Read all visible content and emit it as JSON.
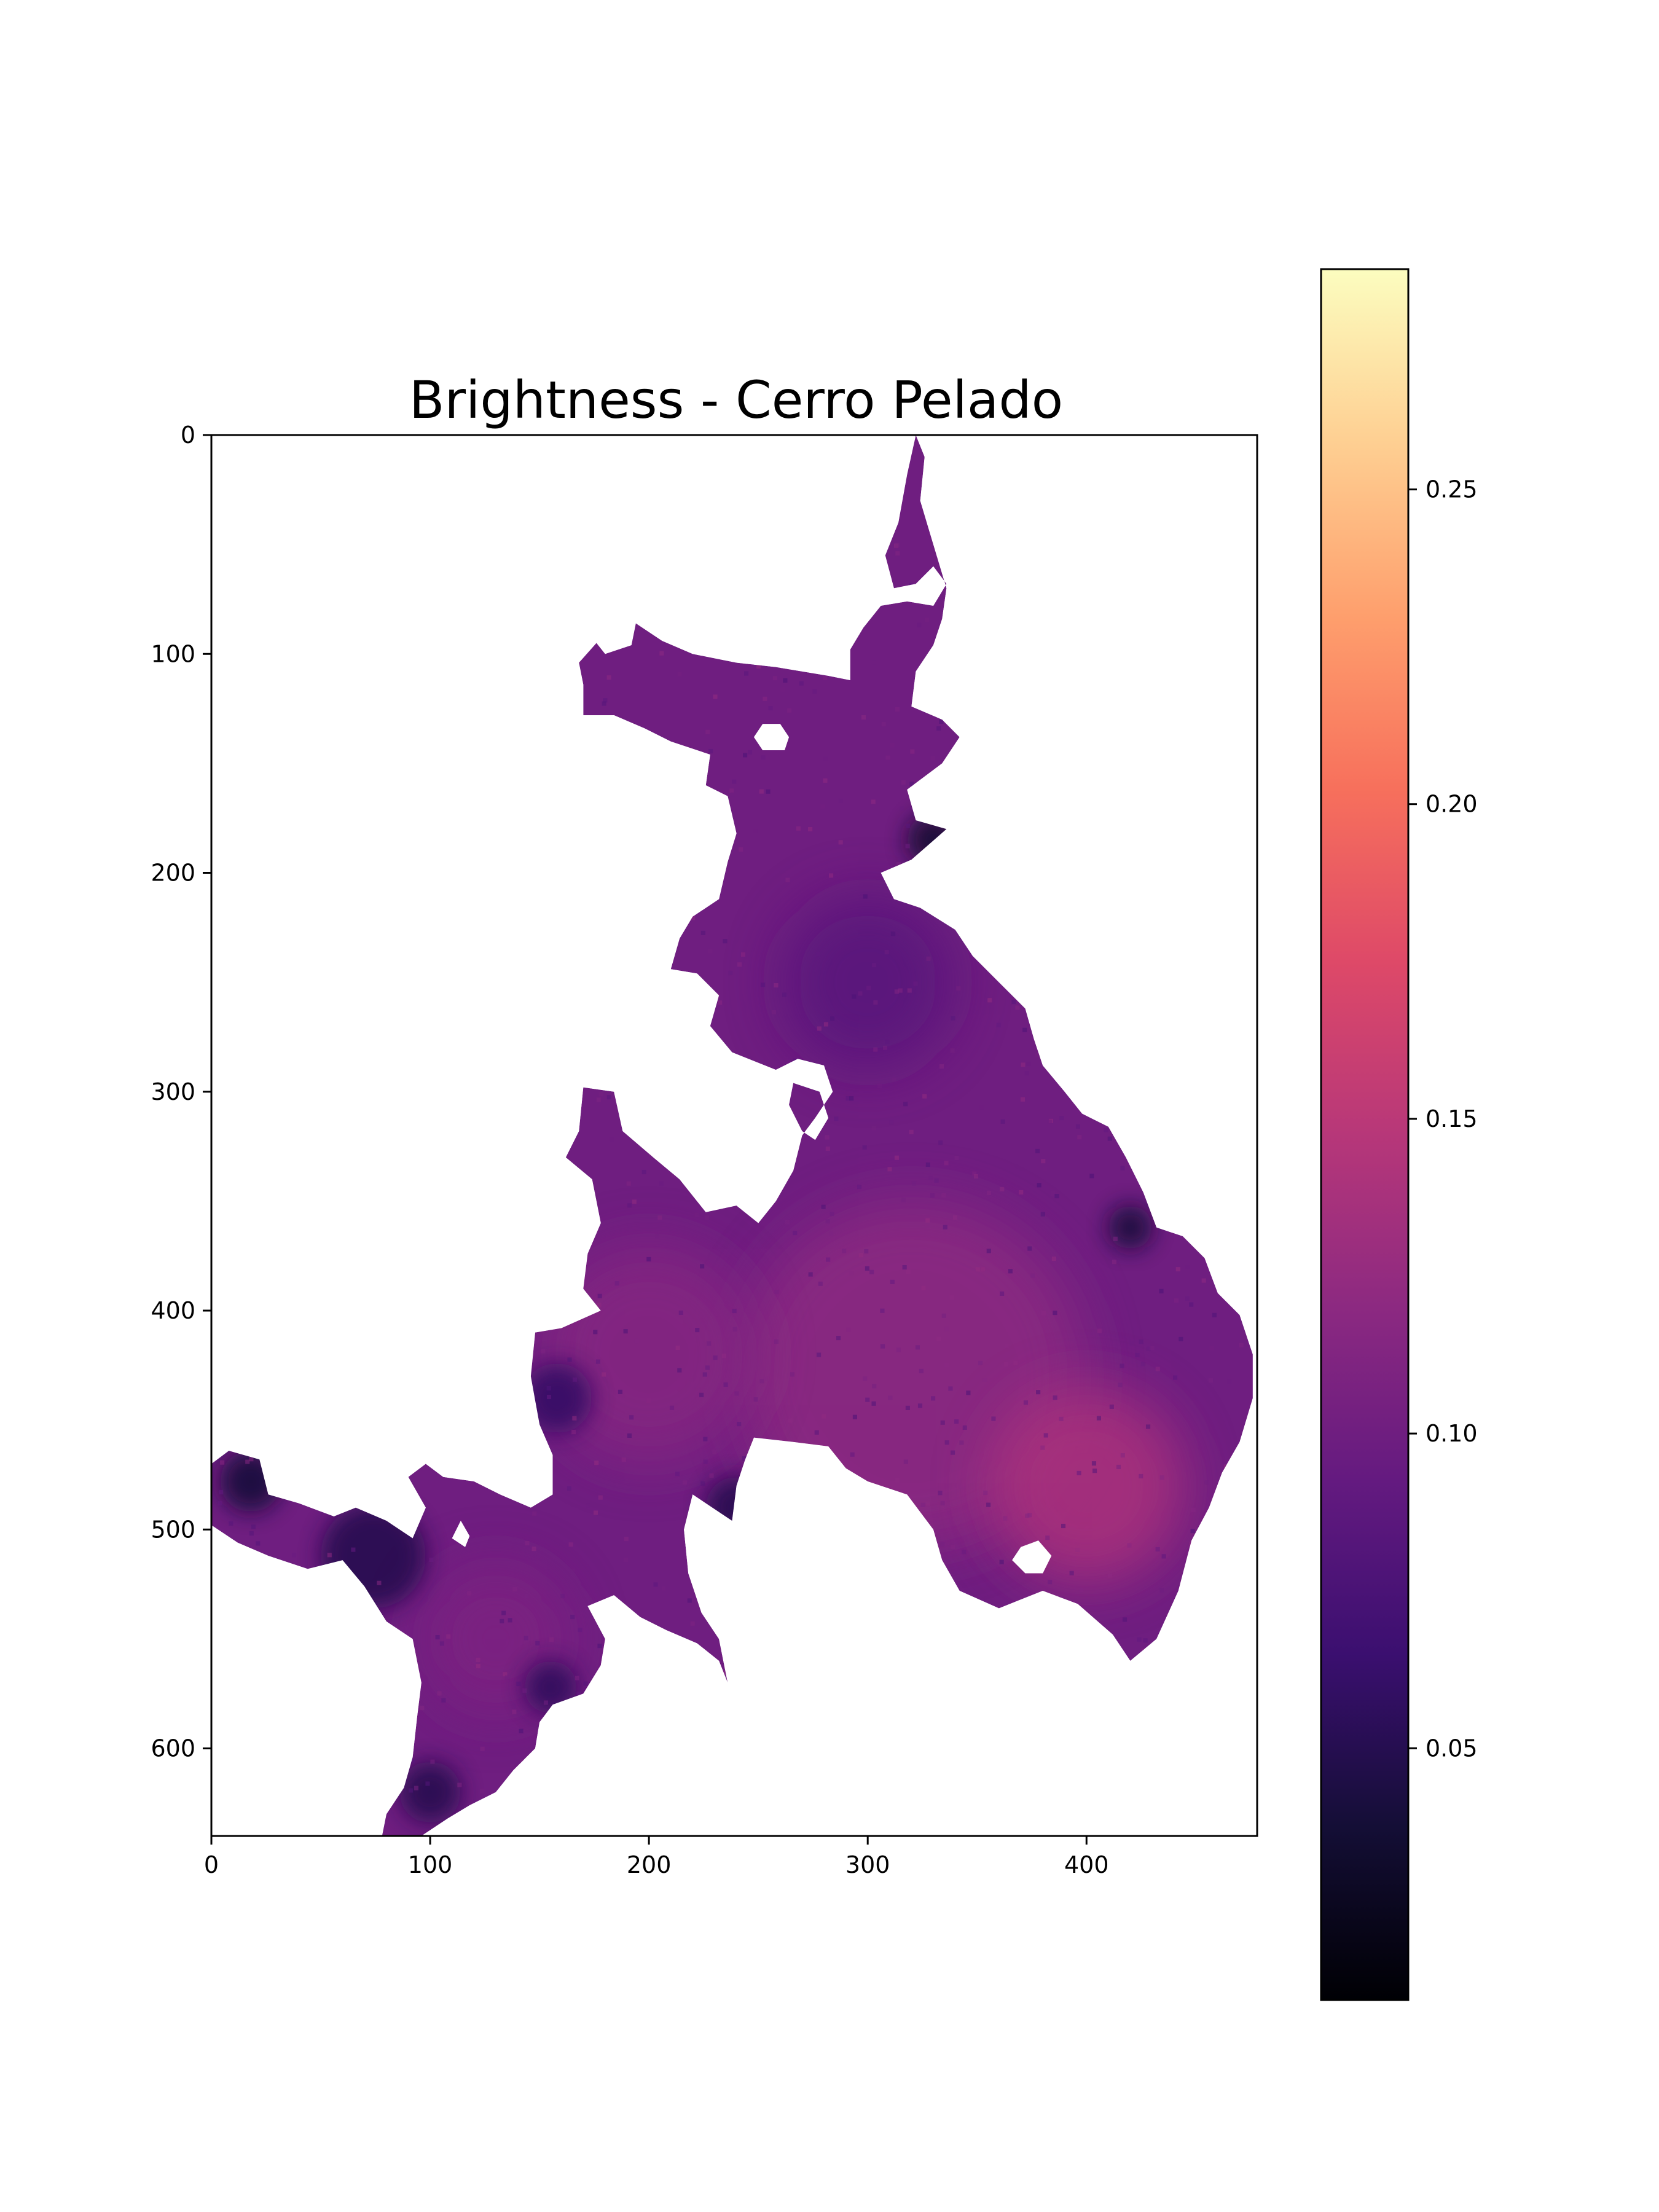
{
  "chart_data": {
    "type": "heatmap",
    "title": "Brightness - Cerro Pelado",
    "xlabel": "",
    "ylabel": "",
    "xlim": [
      0,
      478
    ],
    "ylim": [
      640,
      0
    ],
    "x_ticks": [
      "0",
      "100",
      "200",
      "300",
      "400"
    ],
    "y_ticks": [
      "0",
      "100",
      "200",
      "300",
      "400",
      "500",
      "600"
    ],
    "grid": false,
    "colormap": "magma",
    "colorbar": {
      "min": 0.01,
      "max": 0.285,
      "ticks": [
        "0.05",
        "0.10",
        "0.15",
        "0.20",
        "0.25"
      ]
    },
    "value_range_shown": [
      0.03,
      0.17
    ],
    "typical_value": 0.1,
    "nodata_color": "#ffffff",
    "region_outline": [
      [
        322,
        0
      ],
      [
        318,
        18
      ],
      [
        314,
        40
      ],
      [
        308,
        55
      ],
      [
        312,
        70
      ],
      [
        322,
        68
      ],
      [
        330,
        60
      ],
      [
        336,
        68
      ],
      [
        330,
        78
      ],
      [
        318,
        76
      ],
      [
        306,
        78
      ],
      [
        298,
        88
      ],
      [
        292,
        98
      ],
      [
        292,
        112
      ],
      [
        282,
        110
      ],
      [
        270,
        108
      ],
      [
        258,
        106
      ],
      [
        240,
        104
      ],
      [
        220,
        100
      ],
      [
        206,
        94
      ],
      [
        194,
        86
      ],
      [
        192,
        96
      ],
      [
        180,
        100
      ],
      [
        176,
        95
      ],
      [
        168,
        104
      ],
      [
        170,
        114
      ],
      [
        170,
        128
      ],
      [
        184,
        128
      ],
      [
        198,
        134
      ],
      [
        210,
        140
      ],
      [
        228,
        146
      ],
      [
        226,
        160
      ],
      [
        236,
        165
      ],
      [
        240,
        182
      ],
      [
        236,
        195
      ],
      [
        232,
        212
      ],
      [
        220,
        220
      ],
      [
        214,
        230
      ],
      [
        210,
        244
      ],
      [
        222,
        246
      ],
      [
        232,
        256
      ],
      [
        228,
        270
      ],
      [
        238,
        282
      ],
      [
        258,
        290
      ],
      [
        268,
        285
      ],
      [
        280,
        288
      ],
      [
        284,
        300
      ],
      [
        276,
        312
      ],
      [
        270,
        320
      ],
      [
        266,
        336
      ],
      [
        258,
        350
      ],
      [
        250,
        360
      ],
      [
        240,
        352
      ],
      [
        226,
        355
      ],
      [
        214,
        340
      ],
      [
        202,
        330
      ],
      [
        188,
        318
      ],
      [
        184,
        300
      ],
      [
        170,
        298
      ],
      [
        168,
        318
      ],
      [
        162,
        330
      ],
      [
        174,
        340
      ],
      [
        178,
        360
      ],
      [
        172,
        374
      ],
      [
        170,
        390
      ],
      [
        178,
        400
      ],
      [
        160,
        408
      ],
      [
        148,
        410
      ],
      [
        146,
        430
      ],
      [
        150,
        452
      ],
      [
        156,
        466
      ],
      [
        156,
        484
      ],
      [
        146,
        490
      ],
      [
        132,
        484
      ],
      [
        120,
        478
      ],
      [
        106,
        476
      ],
      [
        98,
        470
      ],
      [
        90,
        476
      ],
      [
        98,
        490
      ],
      [
        92,
        504
      ],
      [
        80,
        496
      ],
      [
        66,
        490
      ],
      [
        56,
        494
      ],
      [
        40,
        488
      ],
      [
        26,
        484
      ],
      [
        22,
        468
      ],
      [
        8,
        464
      ],
      [
        0,
        470
      ],
      [
        0,
        498
      ],
      [
        12,
        506
      ],
      [
        26,
        512
      ],
      [
        44,
        518
      ],
      [
        60,
        514
      ],
      [
        70,
        526
      ],
      [
        80,
        542
      ],
      [
        92,
        550
      ],
      [
        96,
        570
      ],
      [
        94,
        586
      ],
      [
        92,
        604
      ],
      [
        88,
        618
      ],
      [
        80,
        630
      ],
      [
        78,
        640
      ],
      [
        96,
        640
      ],
      [
        108,
        632
      ],
      [
        118,
        626
      ],
      [
        130,
        620
      ],
      [
        138,
        610
      ],
      [
        148,
        600
      ],
      [
        150,
        588
      ],
      [
        156,
        580
      ],
      [
        170,
        575
      ],
      [
        178,
        562
      ],
      [
        180,
        550
      ],
      [
        172,
        535
      ],
      [
        184,
        530
      ],
      [
        196,
        540
      ],
      [
        208,
        546
      ],
      [
        222,
        552
      ],
      [
        232,
        560
      ],
      [
        236,
        570
      ],
      [
        232,
        550
      ],
      [
        224,
        538
      ],
      [
        218,
        520
      ],
      [
        216,
        500
      ],
      [
        220,
        484
      ],
      [
        238,
        496
      ],
      [
        240,
        480
      ],
      [
        244,
        468
      ],
      [
        248,
        458
      ],
      [
        266,
        460
      ],
      [
        282,
        462
      ],
      [
        290,
        472
      ],
      [
        300,
        478
      ],
      [
        318,
        484
      ],
      [
        330,
        500
      ],
      [
        334,
        514
      ],
      [
        342,
        528
      ],
      [
        360,
        536
      ],
      [
        380,
        528
      ],
      [
        396,
        534
      ],
      [
        412,
        548
      ],
      [
        420,
        560
      ],
      [
        432,
        550
      ],
      [
        442,
        528
      ],
      [
        448,
        505
      ],
      [
        456,
        490
      ],
      [
        462,
        474
      ],
      [
        470,
        460
      ],
      [
        476,
        440
      ],
      [
        476,
        420
      ],
      [
        470,
        402
      ],
      [
        460,
        392
      ],
      [
        454,
        376
      ],
      [
        444,
        366
      ],
      [
        432,
        362
      ],
      [
        426,
        346
      ],
      [
        418,
        330
      ],
      [
        410,
        316
      ],
      [
        398,
        310
      ],
      [
        390,
        300
      ],
      [
        380,
        288
      ],
      [
        376,
        276
      ],
      [
        372,
        262
      ],
      [
        360,
        250
      ],
      [
        348,
        238
      ],
      [
        340,
        226
      ],
      [
        324,
        216
      ],
      [
        312,
        212
      ],
      [
        306,
        200
      ],
      [
        320,
        194
      ],
      [
        336,
        180
      ],
      [
        322,
        176
      ],
      [
        318,
        162
      ],
      [
        334,
        150
      ],
      [
        342,
        138
      ],
      [
        334,
        130
      ],
      [
        320,
        124
      ],
      [
        322,
        108
      ],
      [
        330,
        96
      ],
      [
        334,
        84
      ],
      [
        336,
        70
      ],
      [
        330,
        50
      ],
      [
        324,
        30
      ],
      [
        326,
        10
      ],
      [
        322,
        0
      ]
    ],
    "holes": [
      [
        [
          252,
          132
        ],
        [
          260,
          132
        ],
        [
          264,
          138
        ],
        [
          262,
          144
        ],
        [
          252,
          144
        ],
        [
          248,
          138
        ],
        [
          252,
          132
        ]
      ],
      [
        [
          266,
          296
        ],
        [
          278,
          300
        ],
        [
          282,
          312
        ],
        [
          276,
          322
        ],
        [
          270,
          318
        ],
        [
          264,
          306
        ],
        [
          266,
          296
        ]
      ],
      [
        [
          370,
          508
        ],
        [
          378,
          505
        ],
        [
          384,
          512
        ],
        [
          380,
          520
        ],
        [
          372,
          520
        ],
        [
          366,
          514
        ],
        [
          370,
          508
        ]
      ],
      [
        [
          114,
          496
        ],
        [
          118,
          503
        ],
        [
          116,
          508
        ],
        [
          110,
          504
        ],
        [
          114,
          496
        ]
      ]
    ],
    "bright_patches": [
      {
        "x": 320,
        "y": 430,
        "r": 80,
        "value": 0.12
      },
      {
        "x": 400,
        "y": 480,
        "r": 45,
        "value": 0.14
      },
      {
        "x": 200,
        "y": 420,
        "r": 50,
        "value": 0.115
      },
      {
        "x": 130,
        "y": 550,
        "r": 35,
        "value": 0.11
      },
      {
        "x": 300,
        "y": 250,
        "r": 40,
        "value": 0.085
      }
    ],
    "dark_patches": [
      {
        "x": 18,
        "y": 478,
        "r": 14,
        "value": 0.04
      },
      {
        "x": 74,
        "y": 512,
        "r": 24,
        "value": 0.05
      },
      {
        "x": 330,
        "y": 185,
        "r": 12,
        "value": 0.035
      },
      {
        "x": 420,
        "y": 362,
        "r": 10,
        "value": 0.04
      },
      {
        "x": 240,
        "y": 490,
        "r": 14,
        "value": 0.05
      },
      {
        "x": 158,
        "y": 440,
        "r": 16,
        "value": 0.06
      },
      {
        "x": 100,
        "y": 620,
        "r": 14,
        "value": 0.05
      },
      {
        "x": 155,
        "y": 572,
        "r": 12,
        "value": 0.055
      }
    ]
  }
}
